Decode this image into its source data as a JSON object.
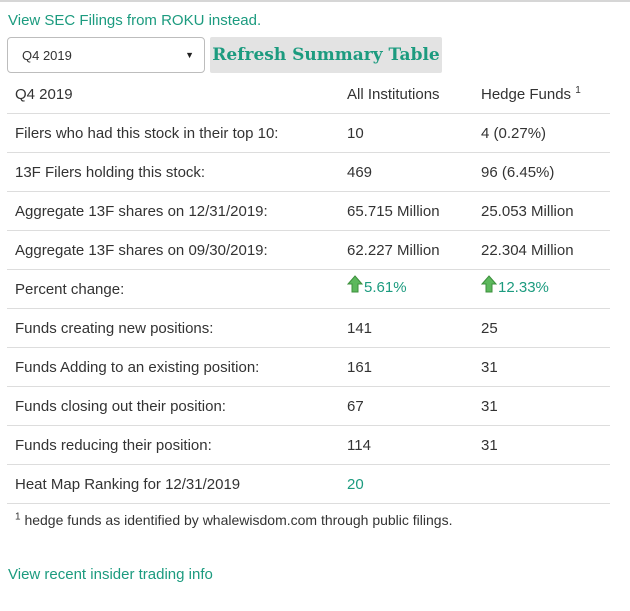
{
  "links": {
    "sec_filings": "View SEC Filings from ROKU instead.",
    "insider_trading": "View recent insider trading info"
  },
  "controls": {
    "quarter_selected": "Q4 2019",
    "refresh_label": "Refresh Summary Table"
  },
  "table": {
    "headers": {
      "quarter": "Q4 2019",
      "institutions": "All Institutions",
      "hedge_funds": "Hedge Funds",
      "hedge_funds_note_marker": "1"
    },
    "rows": [
      {
        "label": "Filers who had this stock in their top 10:",
        "institutions": "10",
        "hedge_funds": "4 (0.27%)"
      },
      {
        "label": "13F Filers holding this stock:",
        "institutions": "469",
        "hedge_funds": "96 (6.45%)"
      },
      {
        "label": "Aggregate 13F shares on 12/31/2019:",
        "institutions": "65.715 Million",
        "hedge_funds": "25.053 Million"
      },
      {
        "label": "Aggregate 13F shares on 09/30/2019:",
        "institutions": "62.227 Million",
        "hedge_funds": "22.304 Million"
      },
      {
        "label": "Percent change:",
        "institutions": "5.61%",
        "hedge_funds": "12.33%"
      },
      {
        "label": "Funds creating new positions:",
        "institutions": "141",
        "hedge_funds": "25"
      },
      {
        "label": "Funds Adding to an existing position:",
        "institutions": "161",
        "hedge_funds": "31"
      },
      {
        "label": "Funds closing out their position:",
        "institutions": "67",
        "hedge_funds": "31"
      },
      {
        "label": "Funds reducing their position:",
        "institutions": "114",
        "hedge_funds": "31"
      },
      {
        "label": "Heat Map Ranking for 12/31/2019",
        "institutions": "20",
        "hedge_funds": ""
      }
    ]
  },
  "footnote": {
    "marker": "1",
    "text": "hedge funds as identified by whalewisdom.com through public filings."
  },
  "icons": {
    "change_up": "up-arrow-icon",
    "dropdown": "chevron-down-icon"
  },
  "colors": {
    "accent": "#1c9b7f",
    "arrow_green": "#5cb85c"
  }
}
